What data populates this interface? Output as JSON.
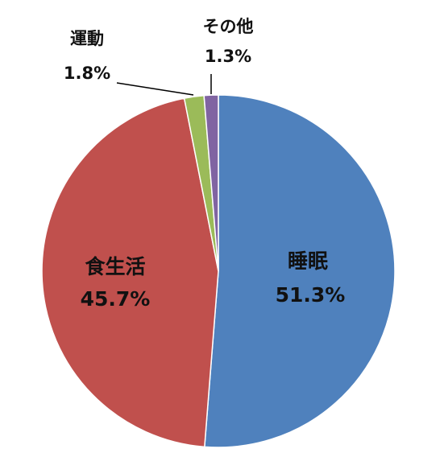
{
  "chart_data": {
    "type": "pie",
    "slices": [
      {
        "label": "睡眠",
        "value": 51.3,
        "value_label": "51.3%",
        "color": "#4f81bd"
      },
      {
        "label": "食生活",
        "value": 45.7,
        "value_label": "45.7%",
        "color": "#c0504d"
      },
      {
        "label": "運動",
        "value": 1.8,
        "value_label": "1.8%",
        "color": "#9bbb59"
      },
      {
        "label": "その他",
        "value": 1.3,
        "value_label": "1.3%",
        "color": "#8064a2"
      }
    ],
    "start": "12 o'clock",
    "direction": "clockwise",
    "legend": "none"
  }
}
